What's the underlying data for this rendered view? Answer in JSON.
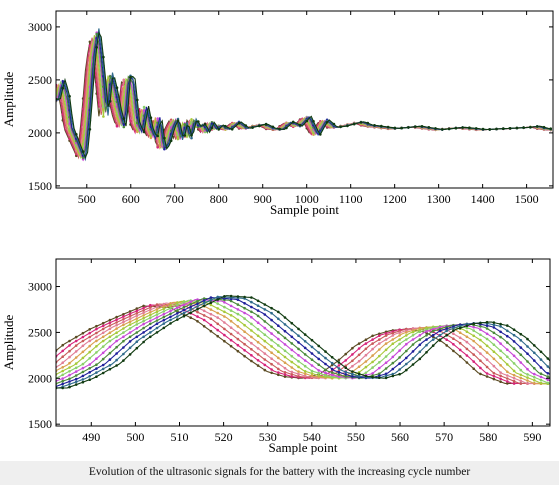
{
  "caption": "Evolution of the ultrasonic signals for the battery with the increasing cycle number",
  "chart_data": [
    {
      "type": "line",
      "xlabel": "Sample point",
      "ylabel": "Amplitude",
      "xlim": [
        430,
        1560
      ],
      "ylim": [
        1480,
        3150
      ],
      "xticks": [
        500,
        600,
        700,
        800,
        900,
        1000,
        1100,
        1200,
        1300,
        1400,
        1500
      ],
      "yticks": [
        1500,
        2000,
        2500,
        3000
      ],
      "series_count": 12,
      "shift_per_series": 2,
      "base_signal": {
        "x": [
          430,
          440,
          450,
          460,
          470,
          480,
          490,
          500,
          510,
          520,
          530,
          540,
          550,
          560,
          570,
          580,
          590,
          600,
          610,
          620,
          630,
          640,
          650,
          660,
          670,
          680,
          690,
          700,
          710,
          720,
          730,
          740,
          750,
          760,
          770,
          780,
          790,
          800,
          820,
          840,
          860,
          880,
          900,
          920,
          940,
          960,
          980,
          1000,
          1020,
          1040,
          1060,
          1080,
          1100,
          1120,
          1140,
          1160,
          1200,
          1250,
          1300,
          1350,
          1400,
          1450,
          1500,
          1520,
          1540,
          1560
        ],
        "y": [
          2300,
          2480,
          2350,
          2050,
          1950,
          1850,
          1750,
          2150,
          2700,
          2950,
          2600,
          2150,
          2550,
          2380,
          2180,
          2050,
          2520,
          2480,
          2100,
          2000,
          2250,
          2050,
          1950,
          2150,
          1850,
          1900,
          2050,
          2130,
          1930,
          2100,
          1950,
          2130,
          2050,
          2080,
          2000,
          2100,
          2030,
          2070,
          2030,
          2100,
          2040,
          2060,
          2080,
          2040,
          2030,
          2100,
          2060,
          2150,
          1980,
          2120,
          2050,
          2060,
          2080,
          2100,
          2070,
          2060,
          2040,
          2060,
          2030,
          2050,
          2030,
          2040,
          2050,
          2060,
          2040,
          2030
        ]
      }
    },
    {
      "type": "line",
      "xlabel": "Sample point",
      "ylabel": "Amplitude",
      "xlim": [
        482,
        594
      ],
      "ylim": [
        1480,
        3300
      ],
      "xticks": [
        490,
        500,
        510,
        520,
        530,
        540,
        550,
        560,
        570,
        580,
        590
      ],
      "yticks": [
        1500,
        2000,
        2500,
        3000
      ],
      "series_count": 12,
      "shift_per_series": 1.7,
      "base_signal": {
        "x": [
          476,
          482,
          488,
          494,
          500,
          506,
          512,
          518,
          524,
          530,
          536,
          540,
          544,
          548,
          552,
          556,
          560,
          564,
          568,
          572,
          576,
          580,
          584,
          588,
          594
        ],
        "y": [
          1900,
          2000,
          2150,
          2400,
          2580,
          2720,
          2850,
          2830,
          2680,
          2450,
          2220,
          2080,
          2020,
          2000,
          2050,
          2200,
          2380,
          2500,
          2560,
          2580,
          2540,
          2420,
          2250,
          2060,
          1940
        ]
      }
    }
  ],
  "colors": [
    "#5a4a22",
    "#d6247a",
    "#c85a5a",
    "#e07e96",
    "#d9a050",
    "#a7c93a",
    "#8ad06a",
    "#c84ad8",
    "#4a8a3a",
    "#1f1f9a",
    "#2f6a8a",
    "#103a10"
  ]
}
